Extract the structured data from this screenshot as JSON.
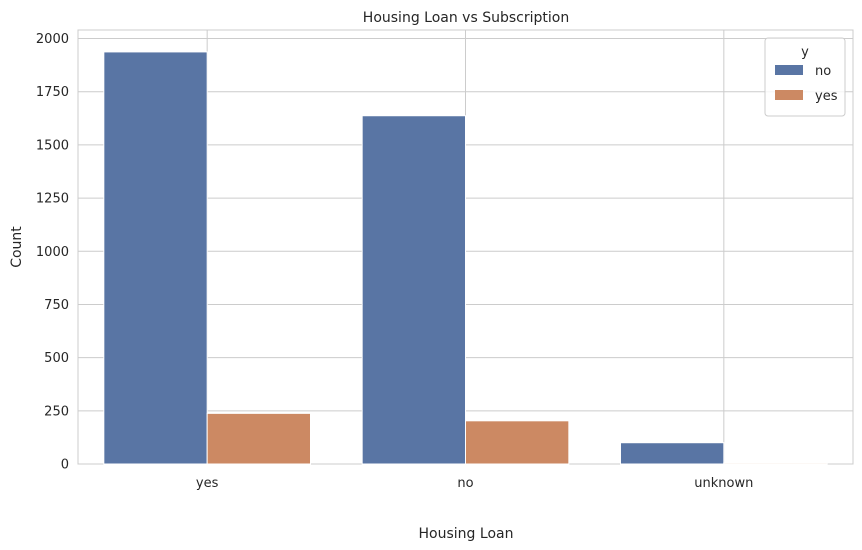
{
  "chart_data": {
    "type": "bar",
    "title": "Housing Loan vs Subscription",
    "xlabel": "Housing Loan",
    "ylabel": "Count",
    "categories": [
      "yes",
      "no",
      "unknown"
    ],
    "series": [
      {
        "name": "no",
        "color": "#5975a4",
        "values": [
          1937,
          1637,
          100
        ]
      },
      {
        "name": "yes",
        "color": "#cc8963",
        "values": [
          238,
          203,
          5
        ]
      }
    ],
    "ylim": [
      0,
      2040
    ],
    "yticks": [
      0,
      250,
      500,
      750,
      1000,
      1250,
      1500,
      1750,
      2000
    ],
    "grid": true,
    "legend": {
      "title": "y",
      "placement": "top-right"
    }
  }
}
